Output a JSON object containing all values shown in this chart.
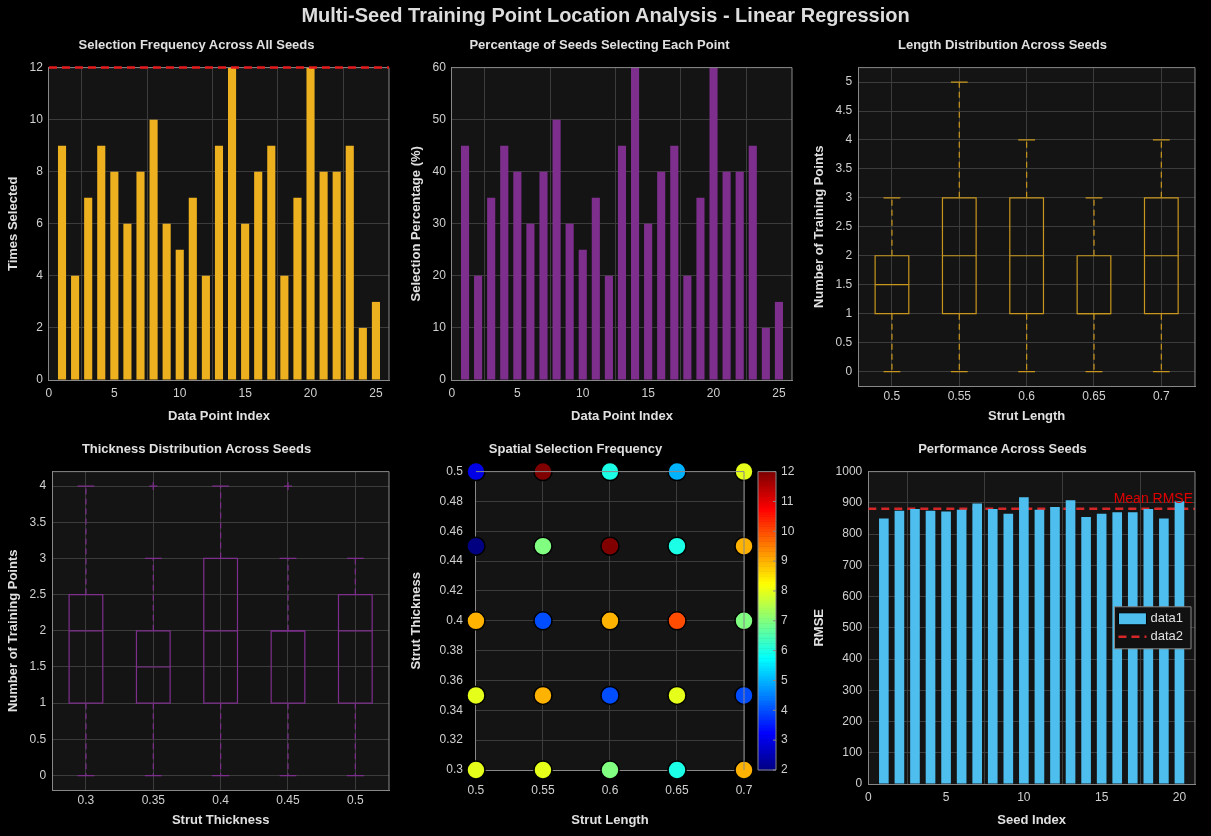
{
  "chart_data": [
    {
      "type": "bar",
      "title": "Selection Frequency Across All Seeds",
      "xlabel": "Data Point Index",
      "ylabel": "Times Selected",
      "annotations": [
        "Multi-Seed Training Point Location Analysis - Linear Regression"
      ],
      "x": [
        1,
        2,
        3,
        4,
        5,
        6,
        7,
        8,
        9,
        10,
        11,
        12,
        13,
        14,
        15,
        16,
        17,
        18,
        19,
        20,
        21,
        22,
        23,
        24,
        25
      ],
      "values": [
        9,
        4,
        7,
        9,
        8,
        6,
        8,
        10,
        6,
        5,
        7,
        4,
        9,
        12,
        6,
        8,
        9,
        4,
        7,
        12,
        8,
        8,
        9,
        2,
        3
      ],
      "color": "#edb120",
      "xlim": [
        0,
        26
      ],
      "xticks": [
        0,
        5,
        10,
        15,
        20,
        25
      ],
      "ylim": [
        0,
        12
      ],
      "yticks": [
        0,
        2,
        4,
        6,
        8,
        10,
        12
      ],
      "grid": true,
      "ref_lines": [
        {
          "axis": "y",
          "value": 12,
          "color": "#e41a1c",
          "line_style": "dashed"
        }
      ]
    },
    {
      "type": "bar",
      "title": "Percentage of Seeds Selecting Each Point",
      "xlabel": "Data Point Index",
      "ylabel": "Selection Percentage (%)",
      "x": [
        1,
        2,
        3,
        4,
        5,
        6,
        7,
        8,
        9,
        10,
        11,
        12,
        13,
        14,
        15,
        16,
        17,
        18,
        19,
        20,
        21,
        22,
        23,
        24,
        25
      ],
      "values": [
        45,
        20,
        35,
        45,
        40,
        30,
        40,
        50,
        30,
        25,
        35,
        20,
        45,
        60,
        30,
        40,
        45,
        20,
        35,
        60,
        40,
        40,
        45,
        10,
        15
      ],
      "color": "#7e2f8e",
      "xlim": [
        0,
        26
      ],
      "xticks": [
        0,
        5,
        10,
        15,
        20,
        25
      ],
      "ylim": [
        0,
        60
      ],
      "yticks": [
        0,
        10,
        20,
        30,
        40,
        50,
        60
      ],
      "grid": true
    },
    {
      "type": "box",
      "title": "Length Distribution Across Seeds",
      "xlabel": "Strut Length",
      "ylabel": "Number of Training Points",
      "categories": [
        "0.5",
        "0.55",
        "0.6",
        "0.65",
        "0.7"
      ],
      "color": "#c8961e",
      "boxes": [
        {
          "low": 0,
          "q1": 1,
          "median": 1.5,
          "q3": 2,
          "high": 3
        },
        {
          "low": 0,
          "q1": 1,
          "median": 2,
          "q3": 3,
          "high": 5
        },
        {
          "low": 0,
          "q1": 1,
          "median": 2,
          "q3": 3,
          "high": 4
        },
        {
          "low": 0,
          "q1": 1,
          "median": 1,
          "q3": 2,
          "high": 3
        },
        {
          "low": 0,
          "q1": 1,
          "median": 2,
          "q3": 3,
          "high": 4
        }
      ],
      "ylim": [
        -0.25,
        5.25
      ],
      "yticks": [
        0,
        0.5,
        1,
        1.5,
        2,
        2.5,
        3,
        3.5,
        4,
        4.5,
        5
      ],
      "grid": true
    },
    {
      "type": "box",
      "title": "Thickness Distribution Across Seeds",
      "xlabel": "Strut Thickness",
      "ylabel": "Number of Training Points",
      "categories": [
        "0.3",
        "0.35",
        "0.4",
        "0.45",
        "0.5"
      ],
      "color": "#7e2f8e",
      "boxes": [
        {
          "low": 0,
          "q1": 1,
          "median": 2,
          "q3": 2.5,
          "high": 4
        },
        {
          "low": 0,
          "q1": 1,
          "median": 1.5,
          "q3": 2,
          "high": 3,
          "outliers": [
            4
          ]
        },
        {
          "low": 0,
          "q1": 1,
          "median": 2,
          "q3": 3,
          "high": 4
        },
        {
          "low": 0,
          "q1": 1,
          "median": 2,
          "q3": 2,
          "high": 3,
          "outliers": [
            4
          ]
        },
        {
          "low": 0,
          "q1": 1,
          "median": 2,
          "q3": 2.5,
          "high": 3
        }
      ],
      "ylim": [
        -0.2,
        4.2
      ],
      "yticks": [
        0,
        0.5,
        1,
        1.5,
        2,
        2.5,
        3,
        3.5,
        4
      ],
      "grid": true
    },
    {
      "type": "scatter",
      "title": "Spatial Selection Frequency",
      "xlabel": "Strut Length",
      "ylabel": "Strut Thickness",
      "x": [
        0.5,
        0.55,
        0.6,
        0.65,
        0.7,
        0.5,
        0.55,
        0.6,
        0.65,
        0.7,
        0.5,
        0.55,
        0.6,
        0.65,
        0.7,
        0.5,
        0.55,
        0.6,
        0.65,
        0.7,
        0.5,
        0.55,
        0.6,
        0.65,
        0.7
      ],
      "values": [
        0.5,
        0.5,
        0.5,
        0.5,
        0.5,
        0.45,
        0.45,
        0.45,
        0.45,
        0.45,
        0.4,
        0.4,
        0.4,
        0.4,
        0.4,
        0.35,
        0.35,
        0.35,
        0.35,
        0.35,
        0.3,
        0.3,
        0.3,
        0.3,
        0.3
      ],
      "cvalues": [
        3,
        12,
        6,
        5,
        8,
        2,
        7,
        12,
        6,
        9,
        9,
        4,
        9,
        10,
        7,
        8,
        9,
        4,
        8,
        4,
        8,
        8,
        7,
        6,
        9
      ],
      "clim": [
        2,
        12
      ],
      "cticks": [
        2,
        3,
        4,
        5,
        6,
        7,
        8,
        9,
        10,
        11,
        12
      ],
      "marker": "circle",
      "xlim": [
        0.5,
        0.7
      ],
      "xticks": [
        0.5,
        0.55,
        0.6,
        0.65,
        0.7
      ],
      "ylim": [
        0.3,
        0.5
      ],
      "yticks": [
        0.3,
        0.32,
        0.34,
        0.36,
        0.38,
        0.4,
        0.42,
        0.44,
        0.46,
        0.48,
        0.5
      ],
      "grid": true
    },
    {
      "type": "bar",
      "title": "Performance Across Seeds",
      "xlabel": "Seed Index",
      "ylabel": "RMSE",
      "x": [
        1,
        2,
        3,
        4,
        5,
        6,
        7,
        8,
        9,
        10,
        11,
        12,
        13,
        14,
        15,
        16,
        17,
        18,
        19,
        20
      ],
      "series": [
        {
          "name": "data1",
          "color": "#4dbeee",
          "values": [
            850,
            875,
            880,
            875,
            872,
            878,
            898,
            880,
            865,
            918,
            878,
            887,
            908,
            855,
            865,
            870,
            870,
            880,
            850,
            905
          ]
        },
        {
          "name": "data2",
          "type": "line",
          "color": "#d62728",
          "line_style": "dashed",
          "x": [
            0,
            21
          ],
          "values": [
            881,
            881
          ]
        }
      ],
      "annotations": [
        {
          "text": "Mean RMSE",
          "x": 21,
          "y": 881
        }
      ],
      "legend": "right",
      "xlim": [
        0,
        21
      ],
      "xticks": [
        0,
        5,
        10,
        15,
        20
      ],
      "ylim": [
        0,
        1000
      ],
      "yticks": [
        0,
        100,
        200,
        300,
        400,
        500,
        600,
        700,
        800,
        900,
        1000
      ],
      "grid": true
    }
  ]
}
